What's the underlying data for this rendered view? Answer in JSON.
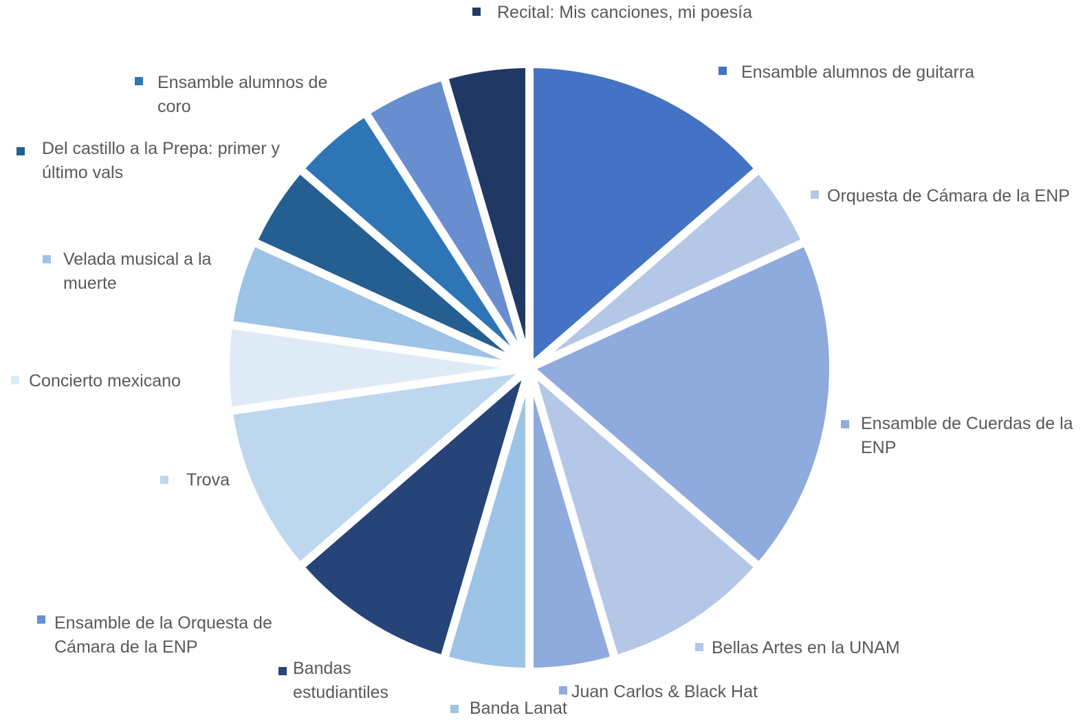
{
  "chart_data": {
    "type": "pie",
    "categories": [
      "Ensamble alumnos de guitarra",
      "Orquesta de Cámara de la ENP",
      "Ensamble de Cuerdas de la ENP",
      "Bellas Artes en la UNAM",
      "Juan Carlos & Black Hat",
      "Banda Lanat",
      "Bandas estudiantiles",
      "Trova",
      "Concierto mexicano",
      "Velada musical a la muerte",
      "Del castillo a la Prepa: primer y último vals",
      "Ensamble alumnos de coro",
      "Ensamble de la Orquesta de Cámara de la ENP",
      "Recital: Mis canciones, mi poesía"
    ],
    "values": [
      3,
      1,
      4,
      2,
      1,
      1,
      2,
      2,
      1,
      1,
      1,
      1,
      1,
      1
    ],
    "colors": [
      "#4472c4",
      "#b4c7e7",
      "#8faadc",
      "#b4c7e7",
      "#8faadc",
      "#9dc3e6",
      "#264478",
      "#bdd7ee",
      "#deebf7",
      "#9dc3e6",
      "#255e91",
      "#2e75b6",
      "#698ed0",
      "#203864"
    ]
  }
}
